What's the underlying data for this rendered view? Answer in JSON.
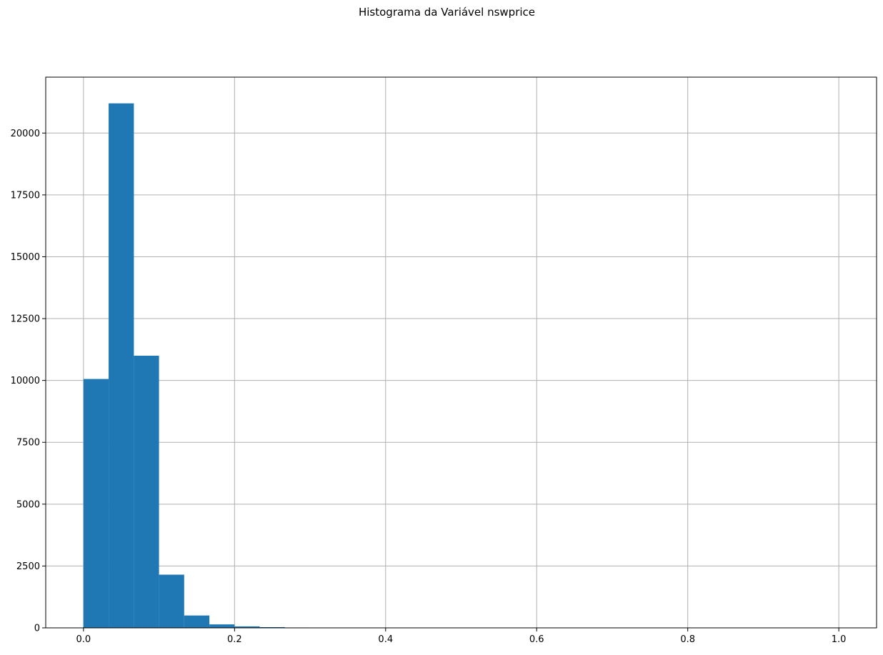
{
  "chart_data": {
    "type": "bar",
    "title": "Histograma da Variável nswprice",
    "xlabel": "",
    "ylabel": "",
    "xlim": [
      -0.05,
      1.05
    ],
    "ylim": [
      0,
      22260
    ],
    "grid": true,
    "bar_color": "#1f77b4",
    "grid_color": "#b0b0b0",
    "bin_width": 0.0333,
    "bins": [
      {
        "x0": 0.0,
        "x1": 0.0333,
        "count": 10060
      },
      {
        "x0": 0.0333,
        "x1": 0.0667,
        "count": 21200
      },
      {
        "x0": 0.0667,
        "x1": 0.1,
        "count": 11000
      },
      {
        "x0": 0.1,
        "x1": 0.1333,
        "count": 2150
      },
      {
        "x0": 0.1333,
        "x1": 0.1667,
        "count": 500
      },
      {
        "x0": 0.1667,
        "x1": 0.2,
        "count": 140
      },
      {
        "x0": 0.2,
        "x1": 0.2333,
        "count": 60
      },
      {
        "x0": 0.2333,
        "x1": 0.2667,
        "count": 30
      },
      {
        "x0": 0.2667,
        "x1": 0.3,
        "count": 15
      },
      {
        "x0": 0.3,
        "x1": 0.3333,
        "count": 6
      },
      {
        "x0": 0.3333,
        "x1": 0.3667,
        "count": 3
      },
      {
        "x0": 0.3667,
        "x1": 0.4,
        "count": 2
      },
      {
        "x0": 0.4,
        "x1": 0.4333,
        "count": 1
      },
      {
        "x0": 0.4333,
        "x1": 0.4667,
        "count": 1
      },
      {
        "x0": 0.4667,
        "x1": 0.5,
        "count": 1
      },
      {
        "x0": 0.5,
        "x1": 0.5333,
        "count": 1
      },
      {
        "x0": 0.5333,
        "x1": 0.5667,
        "count": 0
      },
      {
        "x0": 0.5667,
        "x1": 0.6,
        "count": 0
      },
      {
        "x0": 0.6,
        "x1": 0.6333,
        "count": 0
      },
      {
        "x0": 0.6333,
        "x1": 0.6667,
        "count": 0
      },
      {
        "x0": 0.6667,
        "x1": 0.7,
        "count": 0
      },
      {
        "x0": 0.7,
        "x1": 0.7333,
        "count": 0
      },
      {
        "x0": 0.7333,
        "x1": 0.7667,
        "count": 0
      },
      {
        "x0": 0.7667,
        "x1": 0.8,
        "count": 0
      },
      {
        "x0": 0.8,
        "x1": 0.8333,
        "count": 0
      },
      {
        "x0": 0.8333,
        "x1": 0.8667,
        "count": 0
      },
      {
        "x0": 0.8667,
        "x1": 0.9,
        "count": 0
      },
      {
        "x0": 0.9,
        "x1": 0.9333,
        "count": 0
      },
      {
        "x0": 0.9333,
        "x1": 0.9667,
        "count": 0
      },
      {
        "x0": 0.9667,
        "x1": 1.0,
        "count": 1
      }
    ],
    "x_ticks": [
      {
        "value": 0.0,
        "label": "0.0"
      },
      {
        "value": 0.2,
        "label": "0.2"
      },
      {
        "value": 0.4,
        "label": "0.4"
      },
      {
        "value": 0.6,
        "label": "0.6"
      },
      {
        "value": 0.8,
        "label": "0.8"
      },
      {
        "value": 1.0,
        "label": "1.0"
      }
    ],
    "y_ticks": [
      {
        "value": 0,
        "label": "0"
      },
      {
        "value": 2500,
        "label": "2500"
      },
      {
        "value": 5000,
        "label": "5000"
      },
      {
        "value": 7500,
        "label": "7500"
      },
      {
        "value": 10000,
        "label": "10000"
      },
      {
        "value": 12500,
        "label": "12500"
      },
      {
        "value": 15000,
        "label": "15000"
      },
      {
        "value": 17500,
        "label": "17500"
      },
      {
        "value": 20000,
        "label": "20000"
      }
    ]
  }
}
